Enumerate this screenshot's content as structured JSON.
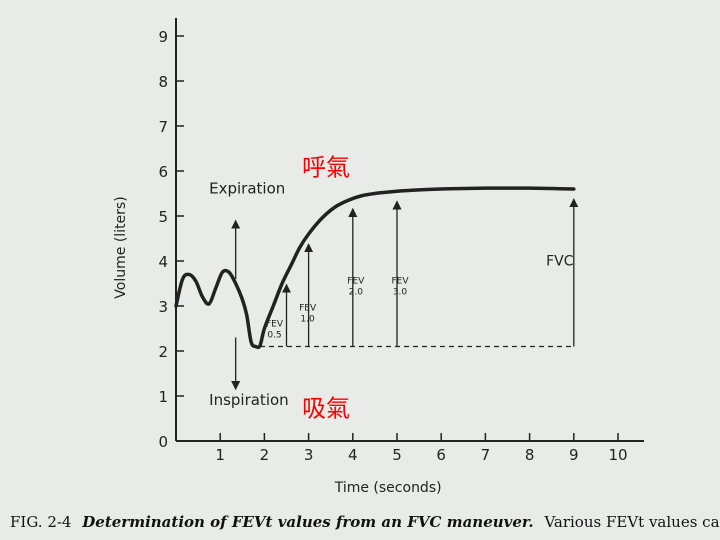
{
  "chart_data": {
    "type": "line",
    "xlabel": "Time (seconds)",
    "ylabel": "Volume (liters)",
    "xlim": [
      0,
      10
    ],
    "ylim": [
      0,
      9
    ],
    "x_ticks": [
      "1",
      "2",
      "3",
      "4",
      "5",
      "6",
      "7",
      "8",
      "9",
      "10"
    ],
    "y_ticks": [
      "0",
      "1",
      "2",
      "3",
      "4",
      "5",
      "6",
      "7",
      "8",
      "9"
    ],
    "grid": false,
    "series": [
      {
        "x": [
          0.0,
          0.15,
          0.3,
          0.45,
          0.6,
          0.75,
          0.9,
          1.05,
          1.2,
          1.35,
          1.5,
          1.6,
          1.7,
          1.8,
          1.9,
          2.0,
          2.2,
          2.4,
          2.6,
          2.8,
          3.0,
          3.3,
          3.6,
          3.9,
          4.2,
          4.5,
          5.0,
          5.5,
          6.0,
          6.5,
          7.0,
          7.5,
          8.0,
          8.5,
          9.0
        ],
        "y": [
          3.0,
          3.6,
          3.7,
          3.55,
          3.2,
          3.05,
          3.4,
          3.75,
          3.75,
          3.5,
          3.15,
          2.8,
          2.2,
          2.1,
          2.12,
          2.5,
          3.0,
          3.5,
          3.9,
          4.3,
          4.6,
          4.95,
          5.2,
          5.35,
          5.45,
          5.5,
          5.55,
          5.58,
          5.6,
          5.61,
          5.62,
          5.62,
          5.62,
          5.61,
          5.6
        ],
        "color": "#222222"
      }
    ],
    "baseline": {
      "y": 2.1,
      "x_start": 1.9,
      "x_end": 9.0
    },
    "fev_markers": [
      {
        "x": 2.5,
        "label_line1": "FEV",
        "label_line2": "0.5"
      },
      {
        "x": 3.0,
        "label_line1": "FEV",
        "label_line2": "1.0"
      },
      {
        "x": 4.0,
        "label_line1": "FEV",
        "label_line2": "2.0"
      },
      {
        "x": 5.0,
        "label_line1": "FEV",
        "label_line2": "3.0"
      },
      {
        "x": 9.0,
        "label_line1": "FVC",
        "label_line2": ""
      }
    ],
    "annotations": {
      "expiration": "Expiration",
      "inspiration": "Inspiration",
      "exhale_cn": "呼氣",
      "inhale_cn": "吸氣"
    },
    "colors": {
      "annotation_cn": "#ff0000",
      "ink": "#222222"
    }
  },
  "caption": {
    "fig": "FIG. 2-4",
    "title": "Determination of FEVt values from an FVC maneuver.",
    "desc": "Various FEVt values can be measured fr"
  }
}
